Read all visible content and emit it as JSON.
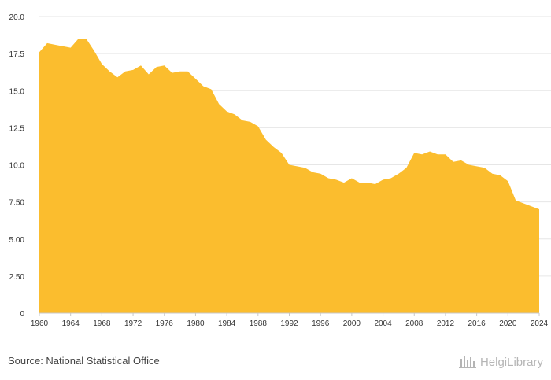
{
  "chart_data": {
    "type": "area",
    "color": "#fbbd2e",
    "grid": true,
    "legend": "none",
    "ylim": [
      0,
      20
    ],
    "xlim": [
      1960,
      2024
    ],
    "y_ticks": [
      "0",
      "2.50",
      "5.00",
      "7.50",
      "10.0",
      "12.5",
      "15.0",
      "17.5",
      "20.0"
    ],
    "x_ticks": [
      "1960",
      "1964",
      "1968",
      "1972",
      "1976",
      "1980",
      "1984",
      "1988",
      "1992",
      "1996",
      "2000",
      "2004",
      "2008",
      "2012",
      "2016",
      "2020",
      "2024"
    ],
    "x": [
      1960,
      1961,
      1962,
      1963,
      1964,
      1965,
      1966,
      1967,
      1968,
      1969,
      1970,
      1971,
      1972,
      1973,
      1974,
      1975,
      1976,
      1977,
      1978,
      1979,
      1980,
      1981,
      1982,
      1983,
      1984,
      1985,
      1986,
      1987,
      1988,
      1989,
      1990,
      1991,
      1992,
      1993,
      1994,
      1995,
      1996,
      1997,
      1998,
      1999,
      2000,
      2001,
      2002,
      2003,
      2004,
      2005,
      2006,
      2007,
      2008,
      2009,
      2010,
      2011,
      2012,
      2013,
      2014,
      2015,
      2016,
      2017,
      2018,
      2019,
      2020,
      2021,
      2022,
      2023,
      2024
    ],
    "values": [
      17.6,
      18.2,
      18.1,
      18.0,
      17.9,
      18.5,
      18.5,
      17.7,
      16.8,
      16.3,
      15.9,
      16.3,
      16.4,
      16.7,
      16.1,
      16.6,
      16.7,
      16.2,
      16.3,
      16.3,
      15.8,
      15.3,
      15.1,
      14.1,
      13.6,
      13.4,
      13.0,
      12.9,
      12.6,
      11.7,
      11.2,
      10.8,
      10.0,
      9.9,
      9.8,
      9.5,
      9.4,
      9.1,
      9.0,
      8.8,
      9.1,
      8.8,
      8.8,
      8.7,
      9.0,
      9.1,
      9.4,
      9.8,
      10.8,
      10.7,
      10.9,
      10.7,
      10.7,
      10.2,
      10.3,
      10.0,
      9.9,
      9.8,
      9.4,
      9.3,
      8.9,
      7.6,
      7.4,
      7.2,
      7.0
    ]
  },
  "footer": {
    "source": "Source: National Statistical Office",
    "brand": "HelgiLibrary"
  }
}
